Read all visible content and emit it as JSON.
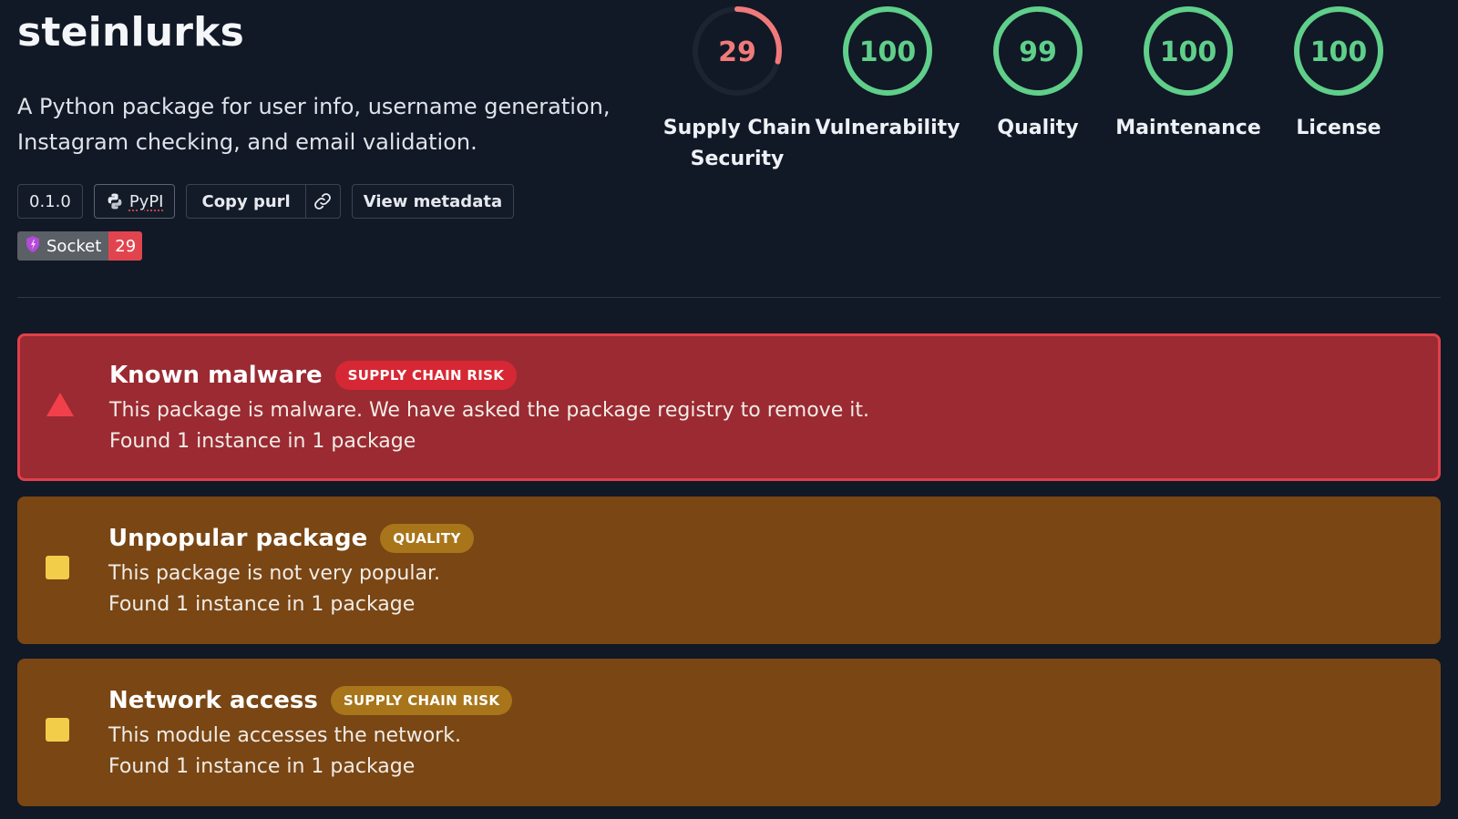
{
  "package": {
    "name": "steinlurks",
    "description": "A Python package for user info, username generation, Instagram checking, and email validation."
  },
  "chips": {
    "version": "0.1.0",
    "ecosystem": "PyPI",
    "copy_purl": "Copy purl",
    "view_metadata": "View metadata"
  },
  "badge": {
    "label": "Socket",
    "value": "29"
  },
  "scores": [
    {
      "value": "29",
      "label_line1": "Supply Chain",
      "label_line2": "Security",
      "fraction": 0.29,
      "color": "#f07a7a"
    },
    {
      "value": "100",
      "label_line1": "Vulnerability",
      "label_line2": "",
      "fraction": 1.0,
      "color": "#5fcf8a"
    },
    {
      "value": "99",
      "label_line1": "Quality",
      "label_line2": "",
      "fraction": 0.99,
      "color": "#5fcf8a"
    },
    {
      "value": "100",
      "label_line1": "Maintenance",
      "label_line2": "",
      "fraction": 1.0,
      "color": "#5fcf8a"
    },
    {
      "value": "100",
      "label_line1": "License",
      "label_line2": "",
      "fraction": 1.0,
      "color": "#5fcf8a"
    }
  ],
  "alerts": [
    {
      "title": "Known malware",
      "tag": "SUPPLY CHAIN RISK",
      "text": "This package is malware. We have asked the package registry to remove it.",
      "found": "Found 1 instance in 1 package",
      "severity": "critical",
      "icon": "warning-triangle-icon"
    },
    {
      "title": "Unpopular package",
      "tag": "QUALITY",
      "text": "This package is not very popular.",
      "found": "Found 1 instance in 1 package",
      "severity": "low",
      "icon": "square-icon"
    },
    {
      "title": "Network access",
      "tag": "SUPPLY CHAIN RISK",
      "text": "This module accesses the network.",
      "found": "Found 1 instance in 1 package",
      "severity": "low",
      "icon": "square-icon"
    }
  ],
  "colors": {
    "background": "#111826",
    "critical_bg": "#9b2a32",
    "warning_bg": "#794614",
    "score_good": "#5fcf8a",
    "score_bad": "#f07a7a"
  }
}
